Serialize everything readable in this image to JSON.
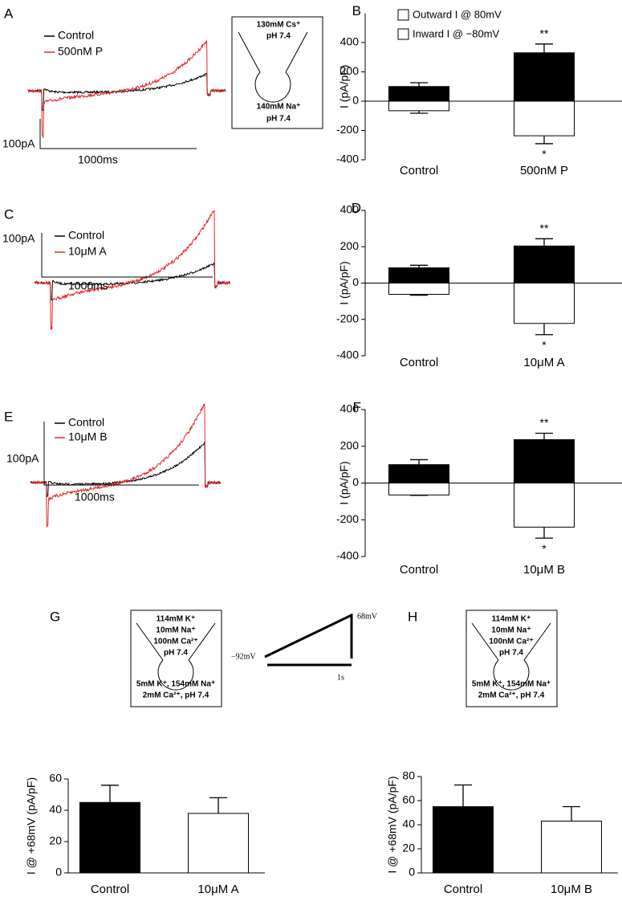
{
  "traces": [
    {
      "label": "A",
      "legend": [
        {
          "name": "Control",
          "color": "#000000"
        },
        {
          "name": "500nM P",
          "color": "#e8262a"
        }
      ],
      "scale_y": "100pA",
      "scale_x": "1000ms"
    },
    {
      "label": "C",
      "legend": [
        {
          "name": "Control",
          "color": "#000000"
        },
        {
          "name": "10μM A",
          "color": "#e8262a"
        }
      ],
      "scale_y": "100pA",
      "scale_x": "1000ms"
    },
    {
      "label": "E",
      "legend": [
        {
          "name": "Control",
          "color": "#000000"
        },
        {
          "name": "10μM B",
          "color": "#e8262a"
        }
      ],
      "scale_y": "100pA",
      "scale_x": "1000ms"
    }
  ],
  "solution_box_A": {
    "pipette": [
      "130mM Cs⁺",
      "pH 7.4"
    ],
    "bath": [
      "140mM Na⁺",
      "pH 7.4"
    ]
  },
  "panel_G": {
    "label": "G",
    "pipette": [
      "114mM K⁺",
      "10mM Na⁺",
      "100nM Ca²⁺",
      "pH 7.4"
    ],
    "bath": [
      "5mM K⁺, 154mM Na⁺",
      "2mM Ca²⁺, pH 7.4"
    ]
  },
  "protocol": {
    "start": "−92mV",
    "end": "68mV",
    "time": "1s"
  },
  "panel_H": {
    "label": "H",
    "pipette": [
      "114mM K⁺",
      "10mM Na⁺",
      "100nM Ca²⁺",
      "pH 7.4"
    ],
    "bath": [
      "5mM K⁺, 154mM Na⁺",
      "2mM Ca²⁺, pH 7.4"
    ]
  },
  "chart_data": [
    {
      "type": "bar",
      "label": "B",
      "y_label": "I (pA/pF)",
      "categories": [
        "Control",
        "500nM P"
      ],
      "ylim": [
        -400,
        600
      ],
      "yticks": [
        -400,
        -200,
        0,
        200,
        400
      ],
      "legend": true,
      "series": [
        {
          "name": "Outward I @ 80mV",
          "color": "#000000",
          "values": [
            100,
            330
          ],
          "errors": [
            26,
            60
          ],
          "significance": [
            null,
            "**"
          ]
        },
        {
          "name": "Inward I @ −80mV",
          "color": "#ffffff",
          "values": [
            -65,
            -236
          ],
          "errors": [
            17,
            54
          ],
          "significance": [
            null,
            "*"
          ]
        }
      ]
    },
    {
      "type": "bar",
      "label": "D",
      "y_label": "I (pA/pF)",
      "categories": [
        "Control",
        "10μM A"
      ],
      "ylim": [
        -400,
        400
      ],
      "yticks": [
        -400,
        -200,
        0,
        200,
        400
      ],
      "legend": false,
      "series": [
        {
          "color": "#000000",
          "values": [
            84,
            204
          ],
          "errors": [
            14,
            40
          ],
          "significance": [
            null,
            "**"
          ]
        },
        {
          "color": "#ffffff",
          "values": [
            -62,
            -222
          ],
          "errors": [
            5,
            62
          ],
          "significance": [
            null,
            "*"
          ]
        }
      ]
    },
    {
      "type": "bar",
      "label": "F",
      "y_label": "I (pA/pF)",
      "categories": [
        "Control",
        "10μM B"
      ],
      "ylim": [
        -400,
        400
      ],
      "yticks": [
        -400,
        -200,
        0,
        200,
        400
      ],
      "legend": false,
      "series": [
        {
          "color": "#000000",
          "values": [
            100,
            236
          ],
          "errors": [
            27,
            35
          ],
          "significance": [
            null,
            "**"
          ]
        },
        {
          "color": "#ffffff",
          "values": [
            -65,
            -240
          ],
          "errors": [
            2,
            60
          ],
          "significance": [
            null,
            "*"
          ]
        }
      ]
    },
    {
      "type": "bar",
      "y_label": "I @ +68mV (pA/pF)",
      "categories": [
        "Control",
        "10μM A"
      ],
      "ylim": [
        0,
        60
      ],
      "yticks": [
        0,
        20,
        40,
        60
      ],
      "legend": false,
      "series": [
        {
          "colors": [
            "#000000",
            "#ffffff"
          ],
          "values": [
            45,
            38
          ],
          "errors": [
            11,
            10
          ]
        }
      ]
    },
    {
      "type": "bar",
      "y_label": "I @ +68mV (pA/pF)",
      "categories": [
        "Control",
        "10μM B"
      ],
      "ylim": [
        0,
        80
      ],
      "yticks": [
        0,
        20,
        40,
        60,
        80
      ],
      "legend": false,
      "series": [
        {
          "colors": [
            "#000000",
            "#ffffff"
          ],
          "values": [
            55,
            43
          ],
          "errors": [
            18,
            12
          ]
        }
      ]
    }
  ]
}
